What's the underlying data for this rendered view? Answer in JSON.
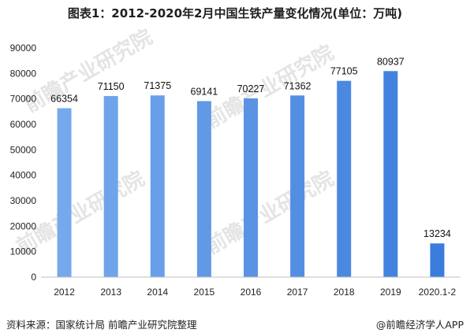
{
  "title": "图表1：2012-2020年2月中国生铁产量变化情况(单位：万吨)",
  "source": "资料来源：国家统计局 前瞻产业研究院整理",
  "brand": "@前瞻经济学人APP",
  "watermark": "前瞻产业研究院",
  "colors": {
    "bar_light": "#76a9ec",
    "bar_mid": "#5b93e4",
    "bar_dark": "#3a7ddc"
  },
  "chart_data": {
    "type": "bar",
    "title": "图表1：2012-2020年2月中国生铁产量变化情况(单位：万吨)",
    "xlabel": "",
    "ylabel": "",
    "categories": [
      "2012",
      "2013",
      "2014",
      "2015",
      "2016",
      "2017",
      "2018",
      "2019",
      "2020.1-2"
    ],
    "values": [
      66354,
      71150,
      71375,
      69141,
      70227,
      71362,
      77105,
      80937,
      13234
    ],
    "ylim": [
      0,
      90000
    ],
    "yticks": [
      0,
      10000,
      20000,
      30000,
      40000,
      50000,
      60000,
      70000,
      80000,
      90000
    ],
    "grid": false,
    "legend": "none"
  }
}
